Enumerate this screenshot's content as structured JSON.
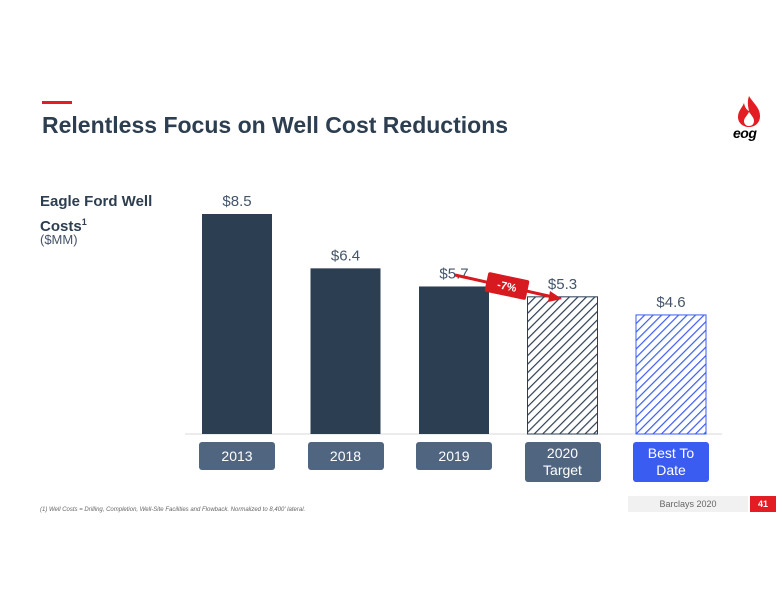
{
  "header": {
    "title": "Relentless Focus on Well Cost Reductions",
    "logo_text": "eog",
    "accent_color": "#e41c23"
  },
  "chart_data": {
    "type": "bar",
    "title": "Eagle Ford Well Costs",
    "title_superscript": "1",
    "unit": "($MM)",
    "categories": [
      "2013",
      "2018",
      "2019",
      "2020\nTarget",
      "Best To\nDate"
    ],
    "values": [
      8.5,
      6.4,
      5.7,
      5.3,
      4.6
    ],
    "value_labels": [
      "$8.5",
      "$6.4",
      "$5.7",
      "$5.3",
      "$4.6"
    ],
    "styles": [
      "solid",
      "solid",
      "solid",
      "hatch-dark",
      "hatch-blue"
    ],
    "bar_colors": [
      "#2c3e52",
      "#2c3e52",
      "#2c3e52",
      "#2c3e52",
      "#3b5cf0"
    ],
    "ylim": [
      0,
      9.5
    ],
    "annotation": {
      "text": "-7%",
      "from": "2019",
      "to": "2020\nTarget",
      "color": "#d71920"
    }
  },
  "footer": {
    "footnote": "(1)    Well Costs = Drilling, Completion, Well-Site Facilities and Flowback. Normalized to 8,400' lateral.",
    "source": "Barclays 2020",
    "page": "41"
  }
}
